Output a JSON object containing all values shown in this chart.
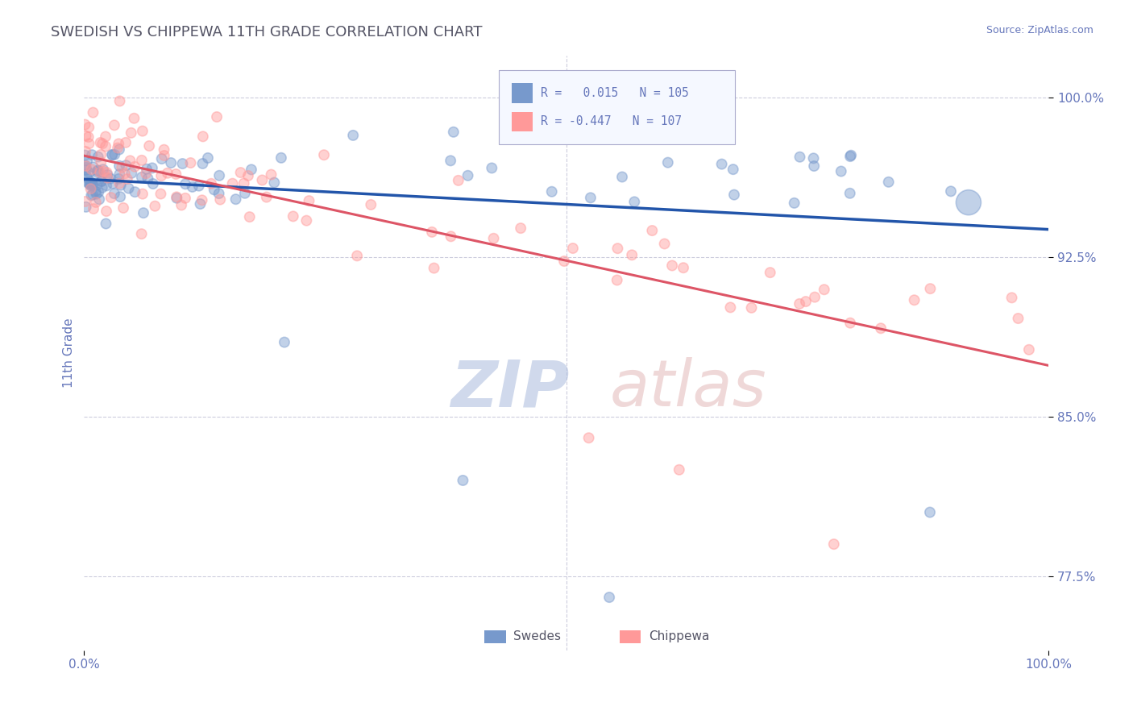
{
  "title": "SWEDISH VS CHIPPEWA 11TH GRADE CORRELATION CHART",
  "source_text": "Source: ZipAtlas.com",
  "ylabel": "11th Grade",
  "xlim": [
    0.0,
    100.0
  ],
  "ylim": [
    74.0,
    102.0
  ],
  "yticks": [
    77.5,
    85.0,
    92.5,
    100.0
  ],
  "xticks": [
    0.0,
    100.0
  ],
  "xticklabels": [
    "0.0%",
    "100.0%"
  ],
  "yticklabels": [
    "77.5%",
    "85.0%",
    "92.5%",
    "100.0%"
  ],
  "blue_R": 0.015,
  "blue_N": 105,
  "pink_R": -0.447,
  "pink_N": 107,
  "blue_color": "#7799cc",
  "pink_color": "#ff9999",
  "blue_line_color": "#2255aa",
  "pink_line_color": "#dd5566",
  "title_color": "#555566",
  "axis_label_color": "#6677bb",
  "grid_color": "#ccccdd",
  "watermark_blue": "#aabbdd",
  "watermark_pink": "#ddaaaa",
  "background_color": "#ffffff",
  "legend_box_color": "#f5f8ff",
  "legend_edge_color": "#aaaacc"
}
